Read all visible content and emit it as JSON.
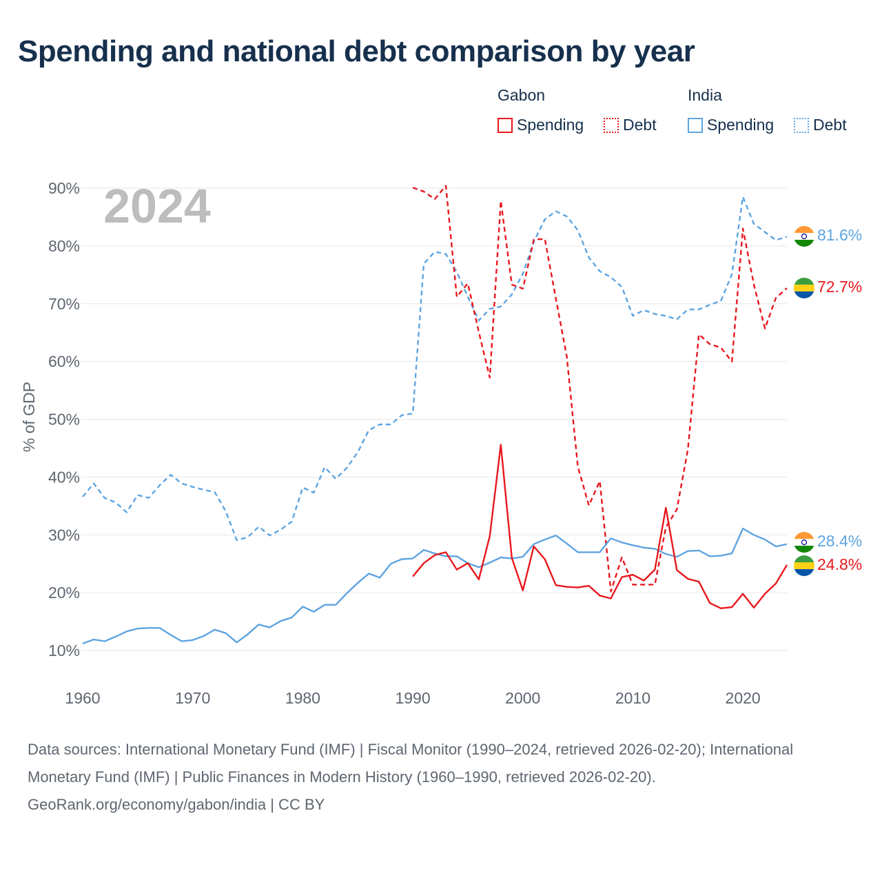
{
  "title": "Spending and national debt comparison by year",
  "legend": {
    "groups": [
      {
        "name": "Gabon",
        "color": "#e8171c",
        "items": [
          {
            "label": "Spending",
            "style": "solid"
          },
          {
            "label": "Debt",
            "style": "dashed"
          }
        ]
      },
      {
        "name": "India",
        "color": "#5ea4e0",
        "items": [
          {
            "label": "Spending",
            "style": "solid"
          },
          {
            "label": "Debt",
            "style": "dashed"
          }
        ]
      }
    ]
  },
  "year_label": "2024",
  "end_labels": {
    "india_debt": "81.6%",
    "gabon_debt": "72.7%",
    "india_spending": "28.4%",
    "gabon_spending": "24.8%"
  },
  "footer": {
    "sources": "Data sources: International Monetary Fund (IMF) | Fiscal Monitor (1990–2024, retrieved 2026-02-20); International Monetary Fund (IMF) | Public Finances in Modern History (1960–1990, retrieved 2026-02-20).",
    "credit": "GeoRank.org/economy/gabon/india | CC BY"
  },
  "colors": {
    "gabon": "#e8171c",
    "india": "#5ea4e0",
    "title": "#16304d",
    "axis_text": "#5e6670",
    "grid": "#e6e6e6",
    "year_watermark": "#bdbdbd"
  },
  "chart_data": {
    "type": "line",
    "title": "Spending and national debt comparison by year",
    "xlabel": "",
    "ylabel": "% of GDP",
    "xlim": [
      1960,
      2024
    ],
    "ylim": [
      10,
      90
    ],
    "x_ticks": [
      1960,
      1970,
      1980,
      1990,
      2000,
      2010,
      2020
    ],
    "y_ticks": [
      10,
      20,
      30,
      40,
      50,
      60,
      70,
      80,
      90
    ],
    "y_tick_labels": [
      "10%",
      "20%",
      "30%",
      "40%",
      "50%",
      "60%",
      "70%",
      "80%",
      "90%"
    ],
    "grid": true,
    "series": [
      {
        "name": "India Debt",
        "country": "India",
        "measure": "Debt",
        "style": "dashed",
        "color": "#5ea4e0",
        "start_year": 1960,
        "values": [
          36.6,
          38.9,
          36.4,
          35.6,
          33.9,
          36.9,
          36.4,
          38.6,
          40.4,
          38.9,
          38.3,
          37.8,
          37.4,
          34.1,
          29.1,
          29.6,
          31.4,
          29.9,
          30.9,
          32.3,
          38.2,
          37.3,
          41.7,
          39.7,
          41.6,
          44.3,
          48.1,
          49.1,
          49.1,
          50.7,
          51.0,
          76.9,
          79.0,
          78.6,
          75.5,
          71.2,
          67.1,
          69.1,
          69.5,
          71.6,
          75.2,
          80.7,
          84.6,
          86.0,
          85.1,
          82.7,
          78.0,
          75.6,
          74.6,
          72.9,
          67.9,
          68.9,
          68.2,
          67.9,
          67.3,
          69.0,
          69.0,
          69.8,
          70.5,
          75.1,
          88.5,
          83.8,
          82.4,
          81.0,
          81.6
        ]
      },
      {
        "name": "Gabon Debt",
        "country": "Gabon",
        "measure": "Debt",
        "style": "dashed",
        "color": "#e8171c",
        "start_year": 1990,
        "values": [
          90.1,
          89.4,
          88.1,
          90.4,
          71.2,
          73.5,
          65.1,
          57.2,
          87.8,
          73.3,
          72.6,
          81.1,
          81.2,
          70.9,
          60.8,
          41.8,
          35.1,
          39.3,
          20.2,
          26.1,
          21.4,
          21.4,
          21.4,
          31.3,
          34.4,
          44.8,
          64.7,
          63.0,
          62.4,
          60.0,
          83.0,
          73.3,
          65.7,
          71.0,
          72.7
        ]
      },
      {
        "name": "India Spending",
        "country": "India",
        "measure": "Spending",
        "style": "solid",
        "color": "#5ea4e0",
        "start_year": 1960,
        "values": [
          11.2,
          11.9,
          11.6,
          12.4,
          13.3,
          13.8,
          13.9,
          13.9,
          12.7,
          11.6,
          11.8,
          12.5,
          13.6,
          13.0,
          11.4,
          12.8,
          14.5,
          14.0,
          15.1,
          15.7,
          17.6,
          16.7,
          17.9,
          17.9,
          19.9,
          21.7,
          23.3,
          22.6,
          25.0,
          25.8,
          25.9,
          27.4,
          26.8,
          26.3,
          26.3,
          25.1,
          24.4,
          25.2,
          26.1,
          25.9,
          26.2,
          28.4,
          29.2,
          29.9,
          28.5,
          27.0,
          27.0,
          27.0,
          29.4,
          28.7,
          28.2,
          27.8,
          27.6,
          26.7,
          26.2,
          27.2,
          27.3,
          26.3,
          26.4,
          26.8,
          31.1,
          30.0,
          29.2,
          28.0,
          28.4
        ]
      },
      {
        "name": "Gabon Spending",
        "country": "Gabon",
        "measure": "Spending",
        "style": "solid",
        "color": "#e8171c",
        "start_year": 1990,
        "values": [
          22.8,
          25.1,
          26.5,
          27.0,
          24.0,
          25.1,
          22.3,
          29.8,
          45.6,
          26.0,
          20.4,
          28.0,
          25.8,
          21.3,
          21.0,
          20.9,
          21.2,
          19.5,
          19.0,
          22.7,
          23.1,
          22.1,
          24.0,
          34.7,
          23.9,
          22.4,
          21.9,
          18.2,
          17.3,
          17.5,
          19.8,
          17.4,
          19.8,
          21.6,
          24.8
        ]
      }
    ]
  }
}
